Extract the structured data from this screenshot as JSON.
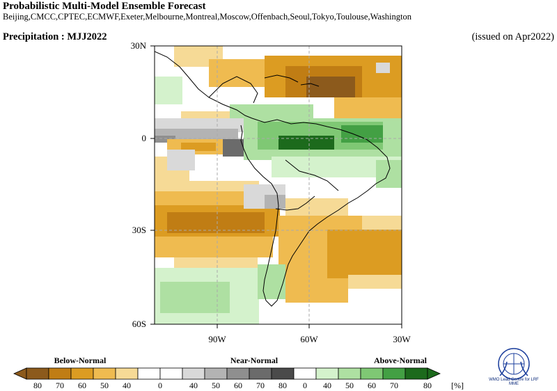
{
  "header": {
    "title": "Probabilistic Multi-Model Ensemble Forecast",
    "centres": "Beijing,CMCC,CPTEC,ECMWF,Exeter,Melbourne,Montreal,Moscow,Offenbach,Seoul,Tokyo,Toulouse,Washington",
    "product": "Precipitation : MJJ2022",
    "issued": "(issued on Apr2022)"
  },
  "map": {
    "lat_labels": [
      "30N",
      "0",
      "30S",
      "60S"
    ],
    "lon_labels": [
      "90W",
      "60W",
      "30W"
    ]
  },
  "legend": {
    "below_normal": "Below-Normal",
    "near_normal": "Near-Normal",
    "above_normal": "Above-Normal",
    "bins": [
      "80",
      "70",
      "60",
      "50",
      "40",
      "0",
      "40",
      "50",
      "60",
      "70",
      "80",
      "0",
      "40",
      "50",
      "60",
      "70",
      "80"
    ],
    "unit": "[%]",
    "colors": [
      "#8c5a1c",
      "#c07d14",
      "#dc9c22",
      "#efbb50",
      "#f6da96",
      "#ffffff",
      "#d9d9d9",
      "#b3b3b3",
      "#8f8f8f",
      "#6b6b6b",
      "#4a4a4a",
      "#ffffff",
      "#d4f2cc",
      "#aee0a2",
      "#7fc874",
      "#43a044",
      "#1c6a1c"
    ],
    "logo_text": "WMO Lead Centre for LRF MME"
  }
}
